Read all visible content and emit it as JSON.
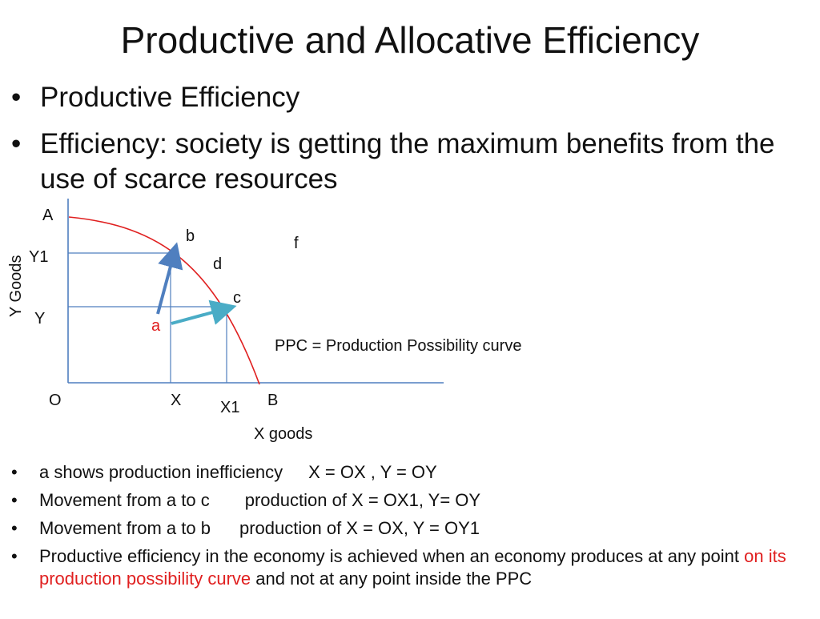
{
  "title": "Productive and Allocative Efficiency",
  "top_bullets": [
    "Productive Efficiency",
    "Efficiency: society is getting the maximum benefits from the use of scarce resources"
  ],
  "diagram": {
    "y_axis_label": "Y Goods",
    "x_axis_label": "X goods",
    "labels": {
      "A": "A",
      "B": "B",
      "O": "O",
      "Y1": "Y1",
      "Y": "Y",
      "X": "X",
      "X1": "X1",
      "a": "a",
      "b": "b",
      "c": "c",
      "d": "d",
      "f": "f"
    },
    "ppc_note": "PPC = Production Possibility curve",
    "colors": {
      "curve": "#e02020",
      "axes": "#4f7fbf",
      "arrow_a_to_b": "#4f7fbf",
      "arrow_a_to_c": "#4aacc6",
      "point_a": "#e02020"
    }
  },
  "bottom_bullets": {
    "b1": {
      "left": "a shows production inefficiency",
      "right": "X = OX , Y = OY"
    },
    "b2": {
      "left": "Movement from a to c",
      "right": "production of X = OX1, Y= OY"
    },
    "b3": {
      "left": "Movement from a to b",
      "right": "production of X = OX, Y = OY1"
    },
    "b4": {
      "pre": "Productive efficiency in the economy is achieved when an economy produces at any point ",
      "highlight": "on its production possibility curve",
      "post": " and not at any point inside the PPC"
    }
  }
}
